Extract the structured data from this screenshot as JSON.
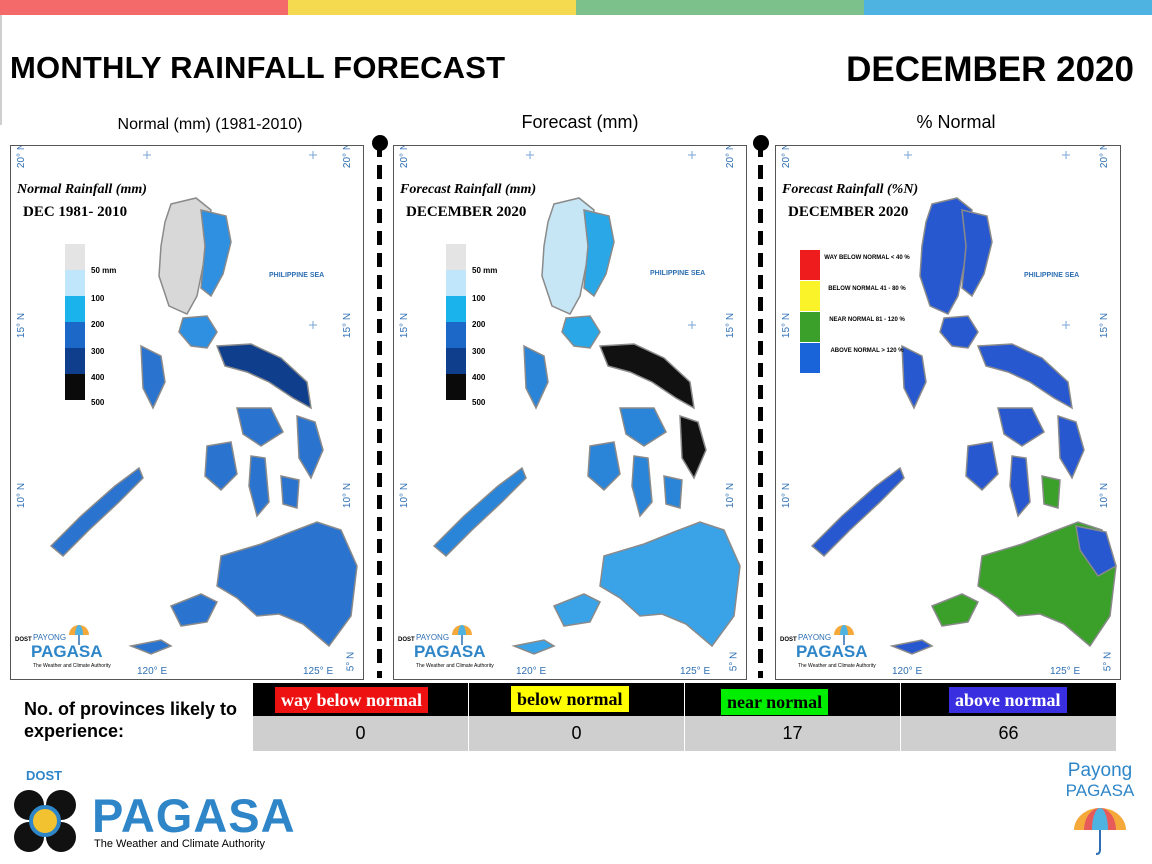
{
  "header": {
    "title": "MONTHLY RAINFALL FORECAST",
    "period": "DECEMBER 2020",
    "bar_colors": [
      "#f4696a",
      "#f5d94e",
      "#7cc08b",
      "#4fb3e2"
    ]
  },
  "panels": [
    {
      "caption": "Normal (mm) (1981-2010)",
      "map_title": "Normal Rainfall (mm)",
      "map_subtitle": "DEC 1981- 2010",
      "sea_label": "PHILIPPINE SEA",
      "lat_labels": [
        "20° N",
        "15° N",
        "10° N",
        "5° N"
      ],
      "lon_labels": [
        "120° E",
        "125° E"
      ],
      "legend": [
        {
          "label": "50 mm",
          "color": "#e4e4e4"
        },
        {
          "label": "100",
          "color": "#bfe6fb"
        },
        {
          "label": "200",
          "color": "#1ab3ec"
        },
        {
          "label": "300",
          "color": "#1c68c8"
        },
        {
          "label": "400",
          "color": "#0f3f8c"
        },
        {
          "label": "500",
          "color": "#0a0a0a"
        }
      ]
    },
    {
      "caption": "Forecast (mm)",
      "map_title": "Forecast Rainfall (mm)",
      "map_subtitle": "DECEMBER 2020",
      "sea_label": "PHILIPPINE SEA",
      "lat_labels": [
        "20° N",
        "15° N",
        "10° N",
        "5° N"
      ],
      "lon_labels": [
        "120° E",
        "125° E"
      ],
      "legend": [
        {
          "label": "50 mm",
          "color": "#e4e4e4"
        },
        {
          "label": "100",
          "color": "#bfe6fb"
        },
        {
          "label": "200",
          "color": "#1ab3ec"
        },
        {
          "label": "300",
          "color": "#1c68c8"
        },
        {
          "label": "400",
          "color": "#0f3f8c"
        },
        {
          "label": "500",
          "color": "#0a0a0a"
        }
      ]
    },
    {
      "caption": "% Normal",
      "map_title": "Forecast Rainfall (%N)",
      "map_subtitle": "DECEMBER 2020",
      "sea_label": "PHILIPPINE SEA",
      "lat_labels": [
        "20° N",
        "15° N",
        "10° N",
        "5° N"
      ],
      "lon_labels": [
        "120° E",
        "125° E"
      ],
      "legend": [
        {
          "label": "WAY BELOW NORMAL < 40 %",
          "color": "#ee1c1c"
        },
        {
          "label": "BELOW NORMAL 41 - 80 %",
          "color": "#fbf32a"
        },
        {
          "label": "NEAR NORMAL 81 - 120 %",
          "color": "#3aa02a"
        },
        {
          "label": "ABOVE NORMAL > 120 %",
          "color": "#1864d8"
        }
      ]
    }
  ],
  "map_logo": {
    "dost": "DOST",
    "payong": "PAYONG",
    "pagasa": "PAGASA",
    "tagline": "The Weather and Climate Authority"
  },
  "stats": {
    "label_line1": "No. of provinces likely to",
    "label_line2": "experience:",
    "categories": [
      {
        "label": "way below normal",
        "count": "0",
        "bg": "#ee1111",
        "fg": "#ffffff"
      },
      {
        "label": "below normal",
        "count": "0",
        "bg": "#ffff00",
        "fg": "#000000"
      },
      {
        "label": "near normal",
        "count": "17",
        "bg": "#00ee00",
        "fg": "#000000"
      },
      {
        "label": "above normal",
        "count": "66",
        "bg": "#3a2fe0",
        "fg": "#ffffff"
      }
    ]
  },
  "footer": {
    "dost": "DOST",
    "pagasa": "PAGASA",
    "tagline": "The Weather and Climate Authority",
    "payong_line1": "Payong",
    "payong_line2": "PAGASA"
  },
  "region_colors": {
    "normal": {
      "north": "#d8d8d8",
      "luzon_east": "#2f8fe0",
      "bicol": "#0f3f8c",
      "visayas": "#2a74d0",
      "mindanao": "#2a74d0"
    },
    "forecast": {
      "north": "#c7e6f5",
      "luzon_east": "#29a7e6",
      "bicol": "#111111",
      "visayas": "#2a84d8",
      "mindanao": "#3aa3e8"
    },
    "percent": {
      "north": "#2858d0",
      "luzon_east": "#2858d0",
      "bicol": "#2858d0",
      "visayas": "#2858d0",
      "mindanao": "#3aa02a"
    }
  }
}
